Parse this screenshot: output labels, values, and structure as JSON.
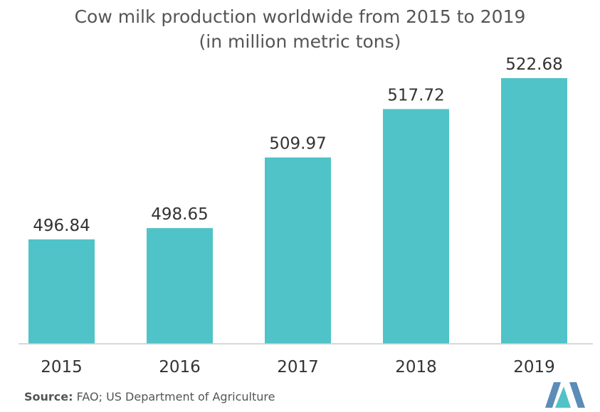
{
  "chart_data": {
    "type": "bar",
    "title": "Cow milk production worldwide from 2015 to 2019",
    "subtitle": "(in million metric tons)",
    "categories": [
      "2015",
      "2016",
      "2017",
      "2018",
      "2019"
    ],
    "values": [
      496.84,
      498.65,
      509.97,
      517.72,
      522.68
    ],
    "value_labels": [
      "496.84",
      "498.65",
      "509.97",
      "517.72",
      "522.68"
    ],
    "xlabel": "",
    "ylabel": "",
    "grid": false,
    "legend": "none",
    "bar_color": "#4fc3c8"
  },
  "source": {
    "label": "Source:",
    "text": "FAO; US Department of Agriculture"
  },
  "colors": {
    "axis": "#cccccc",
    "text": "#333333",
    "title": "#555555",
    "logo_dark": "#5b8db8",
    "logo_light": "#4fc3c8"
  },
  "logo": {
    "icon": "brand-logo-icon"
  }
}
